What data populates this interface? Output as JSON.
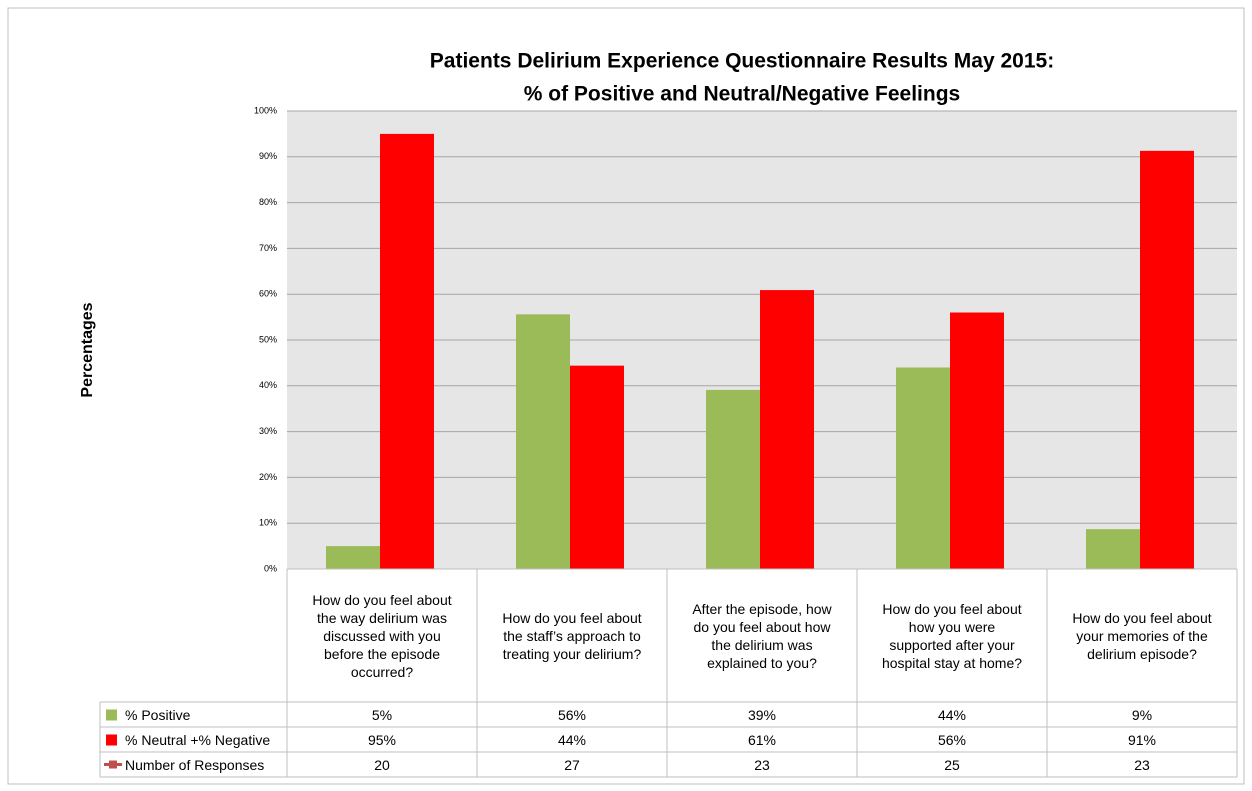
{
  "chart_data": {
    "type": "bar",
    "title": [
      "Patients Delirium Experience Questionnaire Results May 2015:",
      "% of Positive and Neutral/Negative Feelings"
    ],
    "y_label": "Percentages",
    "categories": [
      "How do you feel about the way delirium was discussed with you before the episode occurred?",
      "How do you feel about the staff’s approach to treating your delirium?",
      "After the episode, how do you feel about how the delirium was explained to you?",
      "How do you feel about how you were supported after your hospital stay at home?",
      "How do you feel about your memories of the delirium episode?"
    ],
    "series": [
      {
        "name": "% Positive",
        "color": "#9bbb59",
        "values": [
          5,
          55.6,
          39.1,
          44,
          8.7
        ],
        "value_labels": [
          "5%",
          "56%",
          "39%",
          "44%",
          "9%"
        ]
      },
      {
        "name": "% Neutral +% Negative",
        "color": "#ff0000",
        "values": [
          95,
          44.4,
          60.9,
          56,
          91.3
        ],
        "value_labels": [
          "95%",
          "44%",
          "61%",
          "56%",
          "91%"
        ]
      },
      {
        "name": "Number of Responses",
        "type": "line",
        "color": "#c0504d",
        "values": [
          20,
          27,
          23,
          25,
          23
        ]
      }
    ],
    "ylim": [
      0,
      100
    ],
    "yticks": [
      {
        "value": 0,
        "label": "0%"
      },
      {
        "value": 10,
        "label": "10%"
      },
      {
        "value": 20,
        "label": "20%"
      },
      {
        "value": 30,
        "label": "30%"
      },
      {
        "value": 40,
        "label": "40%"
      },
      {
        "value": 50,
        "label": "50%"
      },
      {
        "value": 60,
        "label": "60%"
      },
      {
        "value": 70,
        "label": "70%"
      },
      {
        "value": 80,
        "label": "80%"
      },
      {
        "value": 90,
        "label": "90%"
      },
      {
        "value": 100,
        "label": "100%"
      }
    ],
    "grid": true
  }
}
